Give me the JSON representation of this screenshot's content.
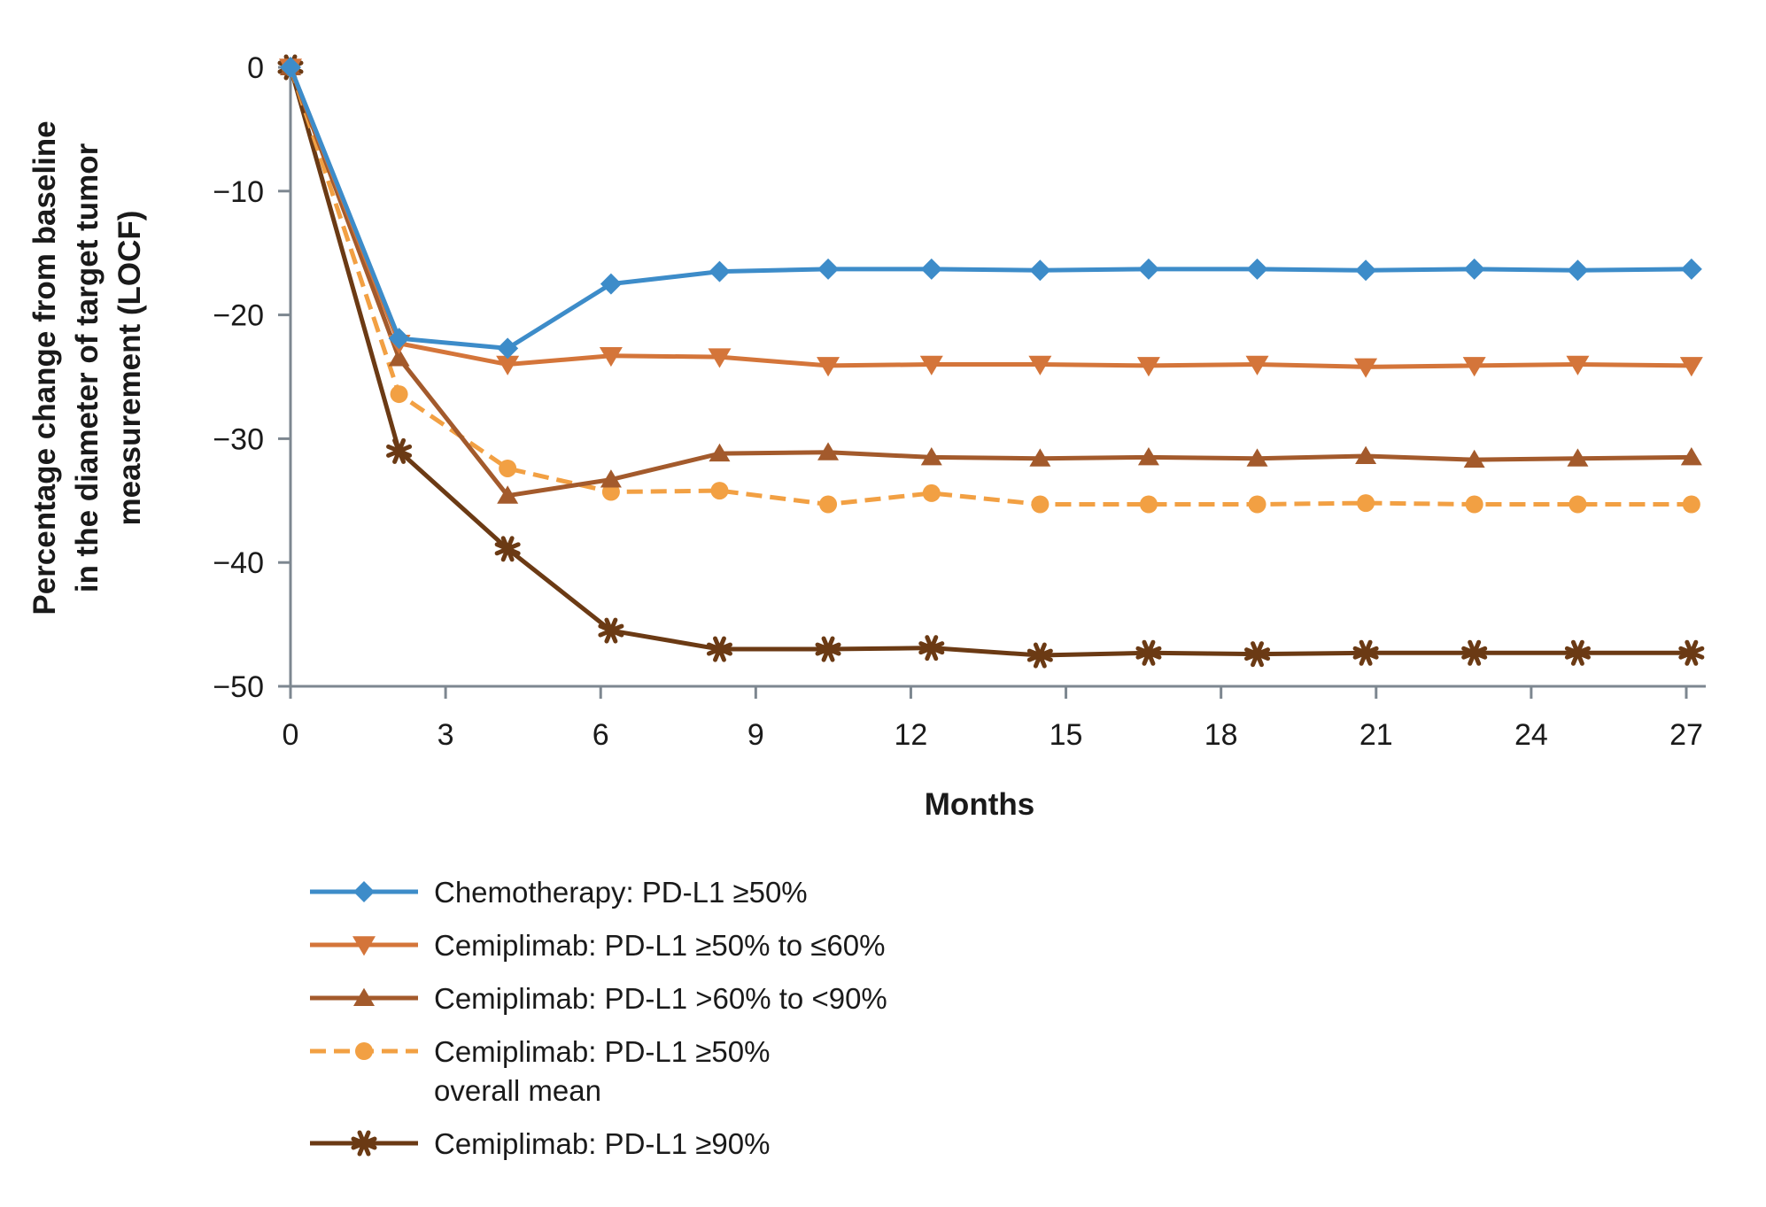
{
  "chart_data": {
    "type": "line",
    "title": "",
    "xlabel": "Months",
    "ylabel_lines": [
      "Percentage change from baseline",
      "in the diameter of target tumor",
      "measurement (LOCF)"
    ],
    "xlim": [
      0,
      27
    ],
    "ylim": [
      -50,
      0
    ],
    "xticks": [
      "0",
      "3",
      "6",
      "9",
      "12",
      "15",
      "18",
      "21",
      "24",
      "27"
    ],
    "xtick_values": [
      0,
      3,
      6,
      9,
      12,
      15,
      18,
      21,
      24,
      27
    ],
    "yticks": [
      "0",
      "−10",
      "−20",
      "−30",
      "−40",
      "−50"
    ],
    "ytick_values": [
      0,
      -10,
      -20,
      -30,
      -40,
      -50
    ],
    "grid": false,
    "x": [
      0,
      2.1,
      4.2,
      6.2,
      8.3,
      10.4,
      12.4,
      14.5,
      16.6,
      18.7,
      20.8,
      22.9,
      24.9,
      27.1
    ],
    "series": [
      {
        "name": "Chemotherapy: PD-L1 ≥50%",
        "color": "#3d8cc9",
        "marker": "diamond",
        "dashed": false,
        "values": [
          0,
          -21.9,
          -22.7,
          -17.5,
          -16.5,
          -16.3,
          -16.3,
          -16.4,
          -16.3,
          -16.3,
          -16.4,
          -16.3,
          -16.4,
          -16.3
        ]
      },
      {
        "name": "Cemiplimab: PD-L1 ≥50% to ≤60%",
        "color": "#d4753a",
        "marker": "triangle-down",
        "dashed": false,
        "values": [
          0,
          -22.3,
          -24.0,
          -23.3,
          -23.4,
          -24.1,
          -24.0,
          -24.0,
          -24.1,
          -24.0,
          -24.2,
          -24.1,
          -24.0,
          -24.1
        ]
      },
      {
        "name": "Cemiplimab: PD-L1 >60% to <90%",
        "color": "#a35a2c",
        "marker": "triangle-up",
        "dashed": false,
        "values": [
          0,
          -23.5,
          -34.6,
          -33.3,
          -31.2,
          -31.1,
          -31.5,
          -31.6,
          -31.5,
          -31.6,
          -31.4,
          -31.7,
          -31.6,
          -31.5
        ]
      },
      {
        "name": "Cemiplimab: PD-L1 ≥50% overall mean",
        "legend_lines": [
          "Cemiplimab: PD-L1 ≥50%",
          "overall mean"
        ],
        "color": "#f2a043",
        "marker": "circle",
        "dashed": true,
        "values": [
          0,
          -26.4,
          -32.4,
          -34.3,
          -34.2,
          -35.3,
          -34.4,
          -35.3,
          -35.3,
          -35.3,
          -35.2,
          -35.3,
          -35.3,
          -35.3
        ]
      },
      {
        "name": "Cemiplimab: PD-L1 ≥90%",
        "color": "#6b3a14",
        "marker": "asterisk",
        "dashed": false,
        "values": [
          0,
          -31.0,
          -38.9,
          -45.5,
          -47.0,
          -47.0,
          -46.9,
          -47.5,
          -47.3,
          -47.4,
          -47.3,
          -47.3,
          -47.3,
          -47.3
        ]
      }
    ]
  }
}
